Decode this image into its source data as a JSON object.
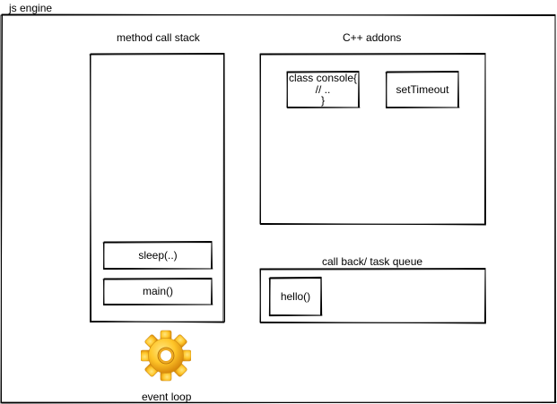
{
  "engine": {
    "title": "js engine"
  },
  "call_stack": {
    "title": "method call stack",
    "frames": [
      "sleep(..)",
      "main()"
    ]
  },
  "addons": {
    "title": "C++ addons",
    "items": [
      {
        "lines": [
          "class console{",
          "// ..",
          "}"
        ]
      },
      {
        "lines": [
          "setTimeout"
        ]
      }
    ]
  },
  "task_queue": {
    "title": "call back/ task queue",
    "items": [
      "hello()"
    ]
  },
  "event_loop": {
    "label": "event loop",
    "icon": "gear-icon",
    "colors": {
      "gear_light": "#ffd24a",
      "gear_dark": "#e09a12"
    }
  }
}
